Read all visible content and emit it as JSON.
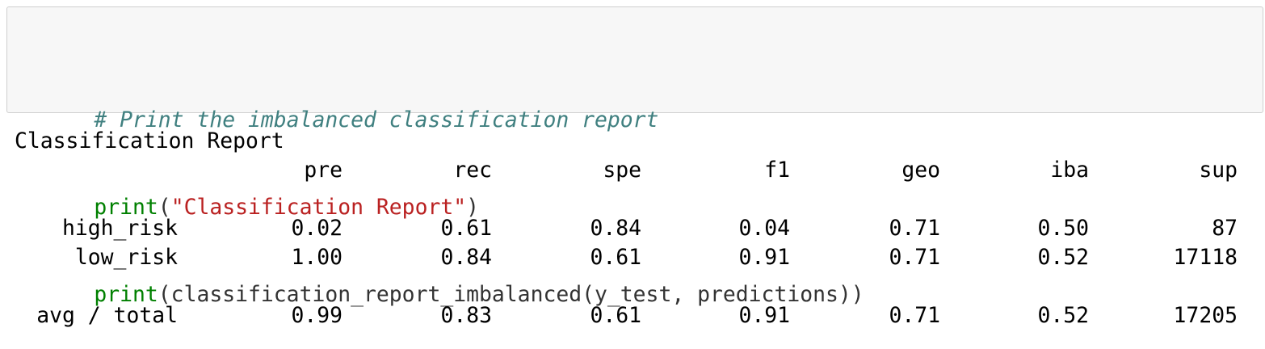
{
  "input_cell": {
    "lines": [
      [
        {
          "t": "# Print the imbalanced classification report",
          "c": "cm"
        }
      ],
      [
        {
          "t": "print",
          "c": "kw"
        },
        {
          "t": "(",
          "c": "pn"
        },
        {
          "t": "\"Classification Report\"",
          "c": "st"
        },
        {
          "t": ")",
          "c": "pn"
        }
      ],
      [
        {
          "t": "print",
          "c": "kw"
        },
        {
          "t": "(classification_report_imbalanced(y_test, predictions))",
          "c": "pn"
        }
      ]
    ]
  },
  "output_cell": {
    "title": "Classification Report",
    "columns": [
      "pre",
      "rec",
      "spe",
      "f1",
      "geo",
      "iba",
      "sup"
    ],
    "rows": [
      {
        "label": "high_risk",
        "values": [
          "0.02",
          "0.61",
          "0.84",
          "0.04",
          "0.71",
          "0.50",
          "87"
        ]
      },
      {
        "label": "low_risk",
        "values": [
          "1.00",
          "0.84",
          "0.61",
          "0.91",
          "0.71",
          "0.52",
          "17118"
        ]
      }
    ],
    "total": {
      "label": "avg / total",
      "values": [
        "0.99",
        "0.83",
        "0.61",
        "0.91",
        "0.71",
        "0.52",
        "17205"
      ]
    }
  }
}
